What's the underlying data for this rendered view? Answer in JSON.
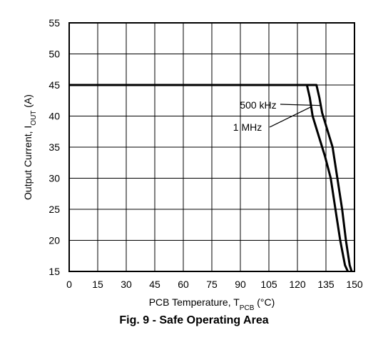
{
  "caption": "Fig. 9 - Safe Operating Area",
  "chart_data": {
    "type": "line",
    "title": "",
    "xlabel": {
      "main": "PCB Temperature, T",
      "sub": "PCB",
      "suffix": " (°C)"
    },
    "ylabel": {
      "main": "Output Current, I",
      "sub": "OUT",
      "suffix": " (A)"
    },
    "xlim": [
      0,
      150
    ],
    "ylim": [
      15,
      55
    ],
    "xticks": [
      0,
      15,
      30,
      45,
      60,
      75,
      90,
      105,
      120,
      135,
      150
    ],
    "yticks": [
      15,
      20,
      25,
      30,
      35,
      40,
      45,
      50,
      55
    ],
    "grid": true,
    "series": [
      {
        "name": "500 kHz",
        "x": [
          0,
          130,
          131.5,
          133,
          136,
          138.5,
          141,
          143.5,
          145.5,
          147.5,
          148.5
        ],
        "y": [
          45,
          45,
          43,
          40.5,
          37.5,
          35,
          30,
          25,
          20,
          16,
          15
        ]
      },
      {
        "name": "1 MHz",
        "x": [
          0,
          125,
          126.5,
          128,
          131,
          134.5,
          137.5,
          140,
          142.5,
          145,
          146.5
        ],
        "y": [
          45,
          45,
          43,
          40,
          37,
          33.5,
          30,
          25,
          20,
          16,
          15
        ]
      }
    ],
    "annotations": [
      {
        "text": "500 kHz",
        "series": "500 kHz"
      },
      {
        "text": "1 MHz",
        "series": "1 MHz"
      }
    ]
  }
}
